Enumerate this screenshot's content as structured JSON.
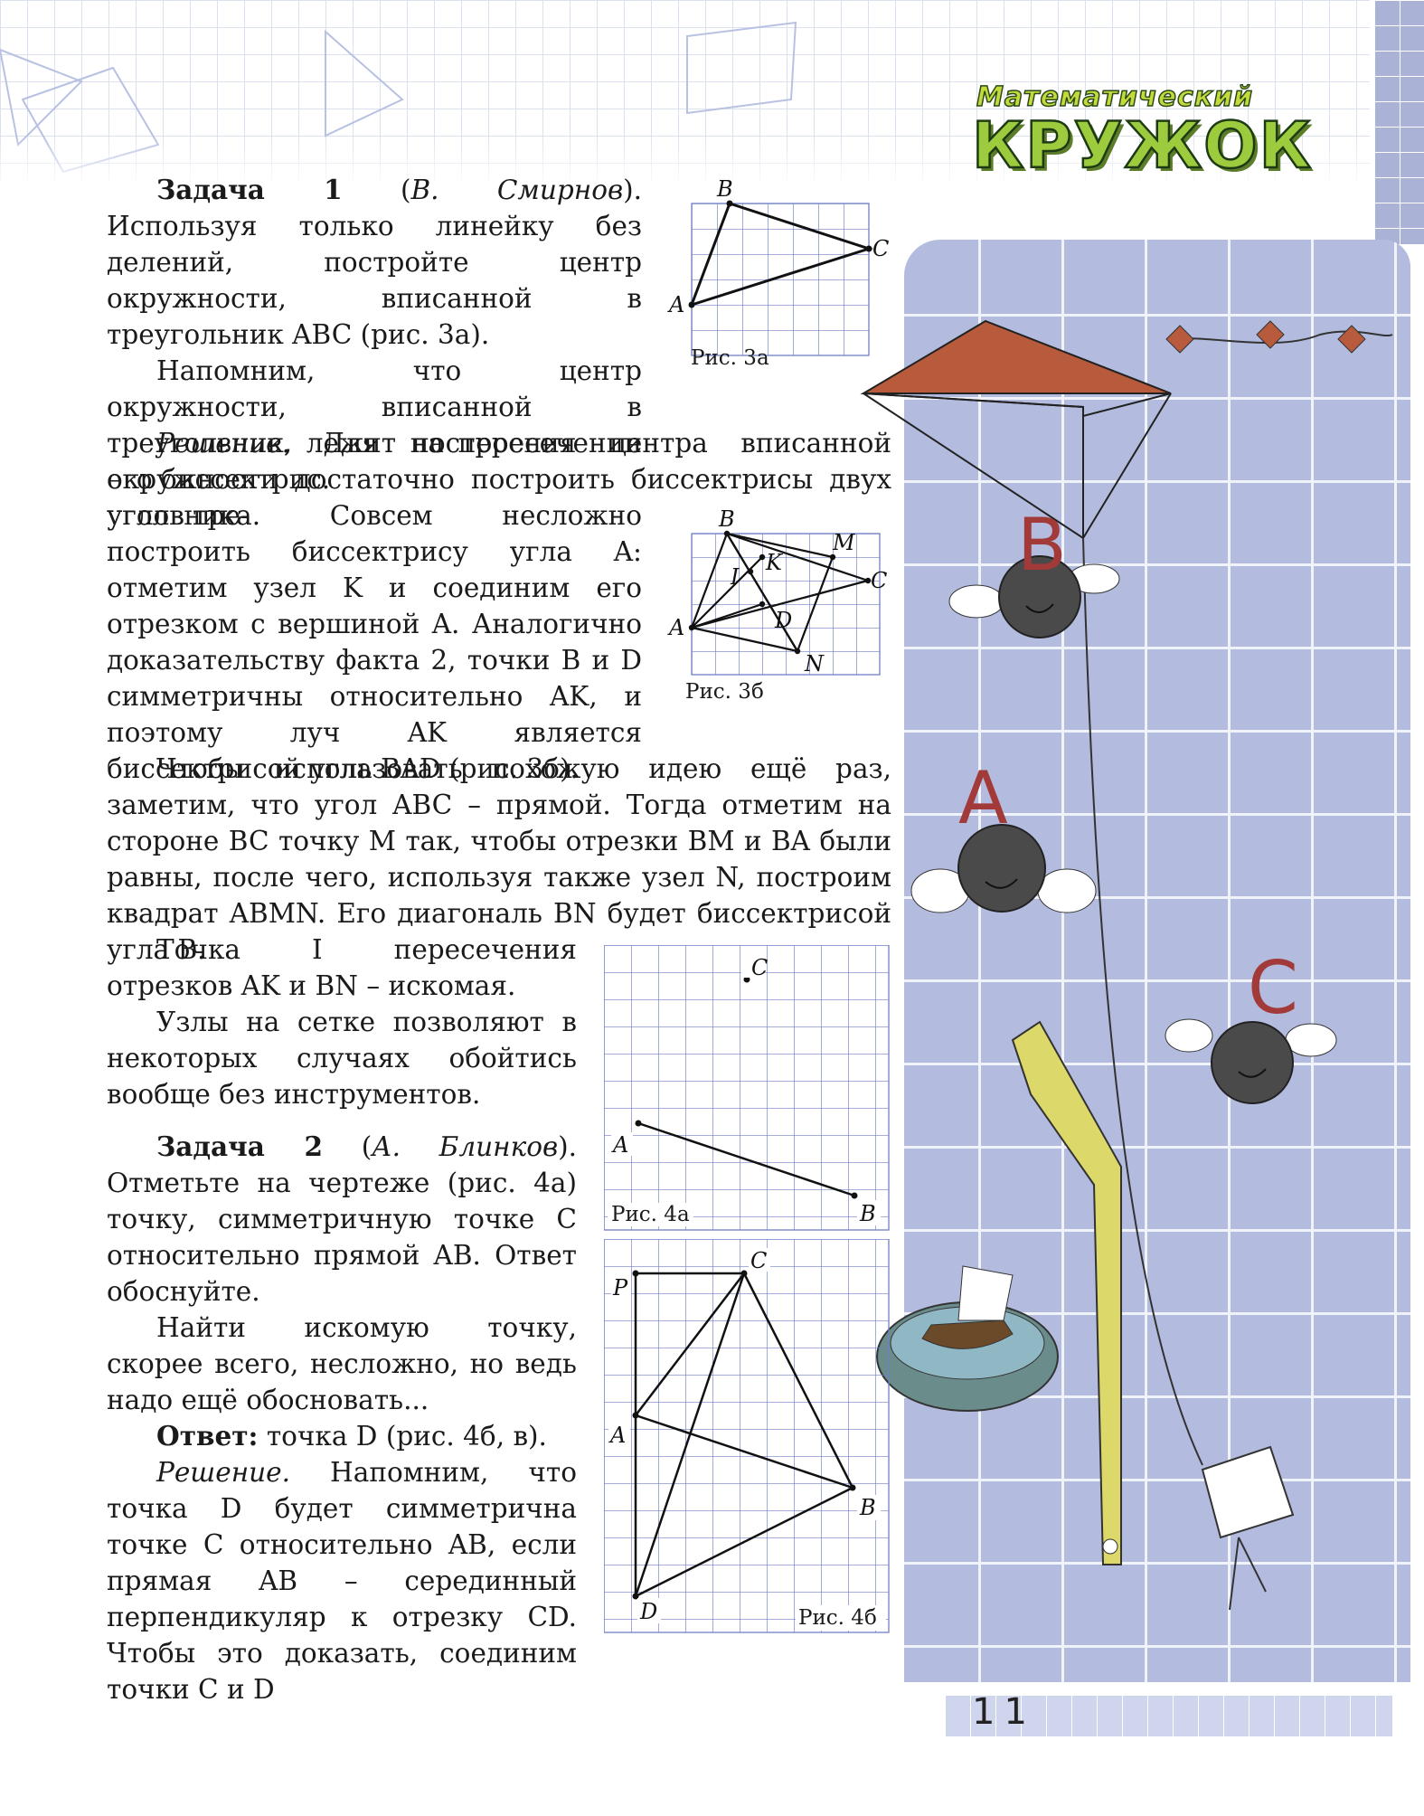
{
  "page_number": "11",
  "logo": {
    "line1": "Математический",
    "line2": "КРУЖОК"
  },
  "problem1": {
    "heading": "Задача 1",
    "author": "В. Смирнов",
    "statement": "Используя только линейку без делений, постройте центр окружности, вписанной в треугольник ABC (рис. 3а).",
    "reminder": "Напомним, что центр окружности, вписанной в треугольник, лежит на пересечении его биссектрис.",
    "solution_label": "Решение.",
    "solution_p1": "Для построения центра вписанной окружности достаточно построить биссектрисы двух углов треугольника. Совсем несложно построить биссектрису угла A: отметим узел K и соединим его отрезком с вершиной A. Аналогично доказательству факта 2, точки B и D симметричны относительно AK, и поэтому луч AK является биссектрисой угла BAD (рис. 3б).",
    "solution_p2": "Чтобы использовать похожую идею ещё раз, заметим, что угол ABC – прямой. Тогда отметим на стороне BC точку M так, чтобы отрезки BM и BA были равны, после чего, используя также узел N, построим квадрат ABMN. Его диагональ BN будет биссектрисой угла B.",
    "solution_p3": "Точка I пересечения отрезков AK и BN – искомая.",
    "solution_p4": "Узлы на сетке позволяют в некоторых случаях обойтись вообще без инструментов."
  },
  "problem2": {
    "heading": "Задача 2",
    "author": "А. Блинков",
    "statement": "Отметьте на чертеже (рис. 4а) точку, симметричную точке C относительно прямой AB. Ответ обоснуйте.",
    "comment": "Найти искомую точку, скорее всего, несложно, но ведь надо ещё обосновать...",
    "answer_label": "Ответ:",
    "answer": "точка D (рис. 4б, в).",
    "solution_label": "Решение.",
    "solution": "Напомним, что точка D будет симметрична точке C относительно AB, если прямая AB – серединный перпендикуляр к отрезку CD. Чтобы это доказать, соединим точки C и D"
  },
  "figures": {
    "fig3a": {
      "caption": "Рис. 3а",
      "labels": [
        "A",
        "B",
        "C"
      ]
    },
    "fig3b": {
      "caption": "Рис. 3б",
      "labels": [
        "A",
        "B",
        "C",
        "I",
        "K",
        "M",
        "D",
        "N"
      ]
    },
    "fig4a": {
      "caption": "Рис. 4а",
      "labels": [
        "C",
        "A",
        "B"
      ]
    },
    "fig4b": {
      "caption": "Рис. 4б",
      "labels": [
        "P",
        "C",
        "A",
        "B",
        "D"
      ]
    }
  },
  "illustration": {
    "letters": [
      "B",
      "A",
      "C"
    ]
  },
  "colors": {
    "grid_blue": "#6f7fc4",
    "kite_red": "#b85a3c",
    "illus_bg": "#b3bcdf",
    "logo_green": "#9ccc3e"
  }
}
